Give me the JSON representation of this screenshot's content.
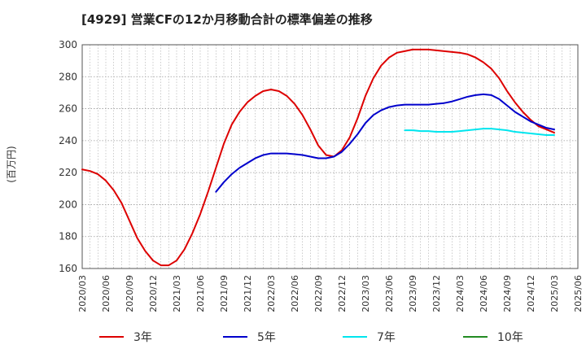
{
  "chart_data": {
    "type": "line",
    "title": "[4929]  営業CFの12か月移動合計の標準偏差の推移",
    "ylabel": "(百万円)",
    "ylim": [
      160,
      300
    ],
    "yticks": [
      160,
      180,
      200,
      220,
      240,
      260,
      280,
      300
    ],
    "x_range": [
      "2020/03",
      "2025/06"
    ],
    "xticks": [
      "2020/03",
      "2020/06",
      "2020/09",
      "2020/12",
      "2021/03",
      "2021/06",
      "2021/09",
      "2021/12",
      "2022/03",
      "2022/06",
      "2022/09",
      "2022/12",
      "2023/03",
      "2023/06",
      "2023/09",
      "2023/12",
      "2024/03",
      "2024/06",
      "2024/09",
      "2024/12",
      "2025/03",
      "2025/06"
    ],
    "grid": true,
    "legend_position": "bottom",
    "series": [
      {
        "name": "3年",
        "color": "#dd0000",
        "points": [
          [
            "2020/03",
            222
          ],
          [
            "2020/04",
            221
          ],
          [
            "2020/05",
            219
          ],
          [
            "2020/06",
            215
          ],
          [
            "2020/07",
            209
          ],
          [
            "2020/08",
            201
          ],
          [
            "2020/09",
            190
          ],
          [
            "2020/10",
            179
          ],
          [
            "2020/11",
            171
          ],
          [
            "2020/12",
            165
          ],
          [
            "2021/01",
            162
          ],
          [
            "2021/02",
            162
          ],
          [
            "2021/03",
            165
          ],
          [
            "2021/04",
            172
          ],
          [
            "2021/05",
            182
          ],
          [
            "2021/06",
            194
          ],
          [
            "2021/07",
            208
          ],
          [
            "2021/08",
            223
          ],
          [
            "2021/09",
            238
          ],
          [
            "2021/10",
            250
          ],
          [
            "2021/11",
            258
          ],
          [
            "2021/12",
            264
          ],
          [
            "2022/01",
            268
          ],
          [
            "2022/02",
            271
          ],
          [
            "2022/03",
            272
          ],
          [
            "2022/04",
            271
          ],
          [
            "2022/05",
            268
          ],
          [
            "2022/06",
            263
          ],
          [
            "2022/07",
            256
          ],
          [
            "2022/08",
            247
          ],
          [
            "2022/09",
            237
          ],
          [
            "2022/10",
            231
          ],
          [
            "2022/11",
            230
          ],
          [
            "2022/12",
            234
          ],
          [
            "2023/01",
            242
          ],
          [
            "2023/02",
            254
          ],
          [
            "2023/03",
            268
          ],
          [
            "2023/04",
            279
          ],
          [
            "2023/05",
            287
          ],
          [
            "2023/06",
            292
          ],
          [
            "2023/07",
            295
          ],
          [
            "2023/08",
            296
          ],
          [
            "2023/09",
            297
          ],
          [
            "2023/10",
            297
          ],
          [
            "2023/11",
            297
          ],
          [
            "2023/12",
            296.5
          ],
          [
            "2024/01",
            296
          ],
          [
            "2024/02",
            295.5
          ],
          [
            "2024/03",
            295
          ],
          [
            "2024/04",
            294
          ],
          [
            "2024/05",
            292
          ],
          [
            "2024/06",
            289
          ],
          [
            "2024/07",
            285
          ],
          [
            "2024/08",
            279
          ],
          [
            "2024/09",
            271
          ],
          [
            "2024/10",
            264
          ],
          [
            "2024/11",
            258
          ],
          [
            "2024/12",
            253
          ],
          [
            "2025/01",
            249
          ],
          [
            "2025/02",
            247
          ],
          [
            "2025/03",
            245
          ]
        ]
      },
      {
        "name": "5年",
        "color": "#0000cc",
        "points": [
          [
            "2021/08",
            208
          ],
          [
            "2021/09",
            214
          ],
          [
            "2021/10",
            219
          ],
          [
            "2021/11",
            223
          ],
          [
            "2021/12",
            226
          ],
          [
            "2022/01",
            229
          ],
          [
            "2022/02",
            231
          ],
          [
            "2022/03",
            232
          ],
          [
            "2022/04",
            232
          ],
          [
            "2022/05",
            232
          ],
          [
            "2022/06",
            231.5
          ],
          [
            "2022/07",
            231
          ],
          [
            "2022/08",
            230
          ],
          [
            "2022/09",
            229
          ],
          [
            "2022/10",
            229
          ],
          [
            "2022/11",
            230
          ],
          [
            "2022/12",
            233
          ],
          [
            "2023/01",
            238
          ],
          [
            "2023/02",
            244
          ],
          [
            "2023/03",
            251
          ],
          [
            "2023/04",
            256
          ],
          [
            "2023/05",
            259
          ],
          [
            "2023/06",
            261
          ],
          [
            "2023/07",
            262
          ],
          [
            "2023/08",
            262.5
          ],
          [
            "2023/09",
            262.5
          ],
          [
            "2023/10",
            262.5
          ],
          [
            "2023/11",
            262.5
          ],
          [
            "2023/12",
            263
          ],
          [
            "2024/01",
            263.5
          ],
          [
            "2024/02",
            264.5
          ],
          [
            "2024/03",
            266
          ],
          [
            "2024/04",
            267.5
          ],
          [
            "2024/05",
            268.5
          ],
          [
            "2024/06",
            269
          ],
          [
            "2024/07",
            268.5
          ],
          [
            "2024/08",
            266
          ],
          [
            "2024/09",
            262
          ],
          [
            "2024/10",
            258
          ],
          [
            "2024/11",
            255
          ],
          [
            "2024/12",
            252
          ],
          [
            "2025/01",
            250
          ],
          [
            "2025/02",
            248
          ],
          [
            "2025/03",
            247
          ]
        ]
      },
      {
        "name": "7年",
        "color": "#00e5ee",
        "points": [
          [
            "2023/08",
            246.5
          ],
          [
            "2023/09",
            246.5
          ],
          [
            "2023/10",
            246
          ],
          [
            "2023/11",
            246
          ],
          [
            "2023/12",
            245.5
          ],
          [
            "2024/01",
            245.5
          ],
          [
            "2024/02",
            245.5
          ],
          [
            "2024/03",
            246
          ],
          [
            "2024/04",
            246.5
          ],
          [
            "2024/05",
            247
          ],
          [
            "2024/06",
            247.5
          ],
          [
            "2024/07",
            247.5
          ],
          [
            "2024/08",
            247
          ],
          [
            "2024/09",
            246.5
          ],
          [
            "2024/10",
            245.5
          ],
          [
            "2024/11",
            245
          ],
          [
            "2024/12",
            244.5
          ],
          [
            "2025/01",
            244
          ],
          [
            "2025/02",
            243.5
          ],
          [
            "2025/03",
            243.5
          ]
        ]
      },
      {
        "name": "10年",
        "color": "#228b22",
        "points": []
      }
    ]
  }
}
